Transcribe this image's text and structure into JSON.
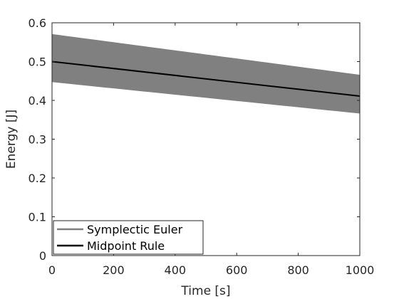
{
  "chart_data": {
    "type": "line",
    "title": "",
    "xlabel": "Time [s]",
    "ylabel": "Energy [J]",
    "xlim": [
      0,
      1000
    ],
    "ylim": [
      0,
      0.6
    ],
    "xticks": [
      0,
      200,
      400,
      600,
      800,
      1000
    ],
    "xtick_labels": [
      "0",
      "200",
      "400",
      "600",
      "800",
      "1000"
    ],
    "yticks": [
      0,
      0.1,
      0.2,
      0.3,
      0.4,
      0.5,
      0.6
    ],
    "ytick_labels": [
      "0",
      "0.1",
      "0.2",
      "0.3",
      "0.4",
      "0.5",
      "0.6"
    ],
    "grid": false,
    "legend_position": "bottom-left",
    "series": [
      {
        "name": "Symplectic Euler",
        "kind": "oscillating-band",
        "color": "#808080",
        "x": [
          0,
          1000
        ],
        "upper": [
          0.57,
          0.465
        ],
        "lower": [
          0.448,
          0.367
        ]
      },
      {
        "name": "Midpoint Rule",
        "kind": "line",
        "color": "#000000",
        "x": [
          0,
          1000
        ],
        "values": [
          0.5,
          0.411
        ]
      }
    ]
  }
}
